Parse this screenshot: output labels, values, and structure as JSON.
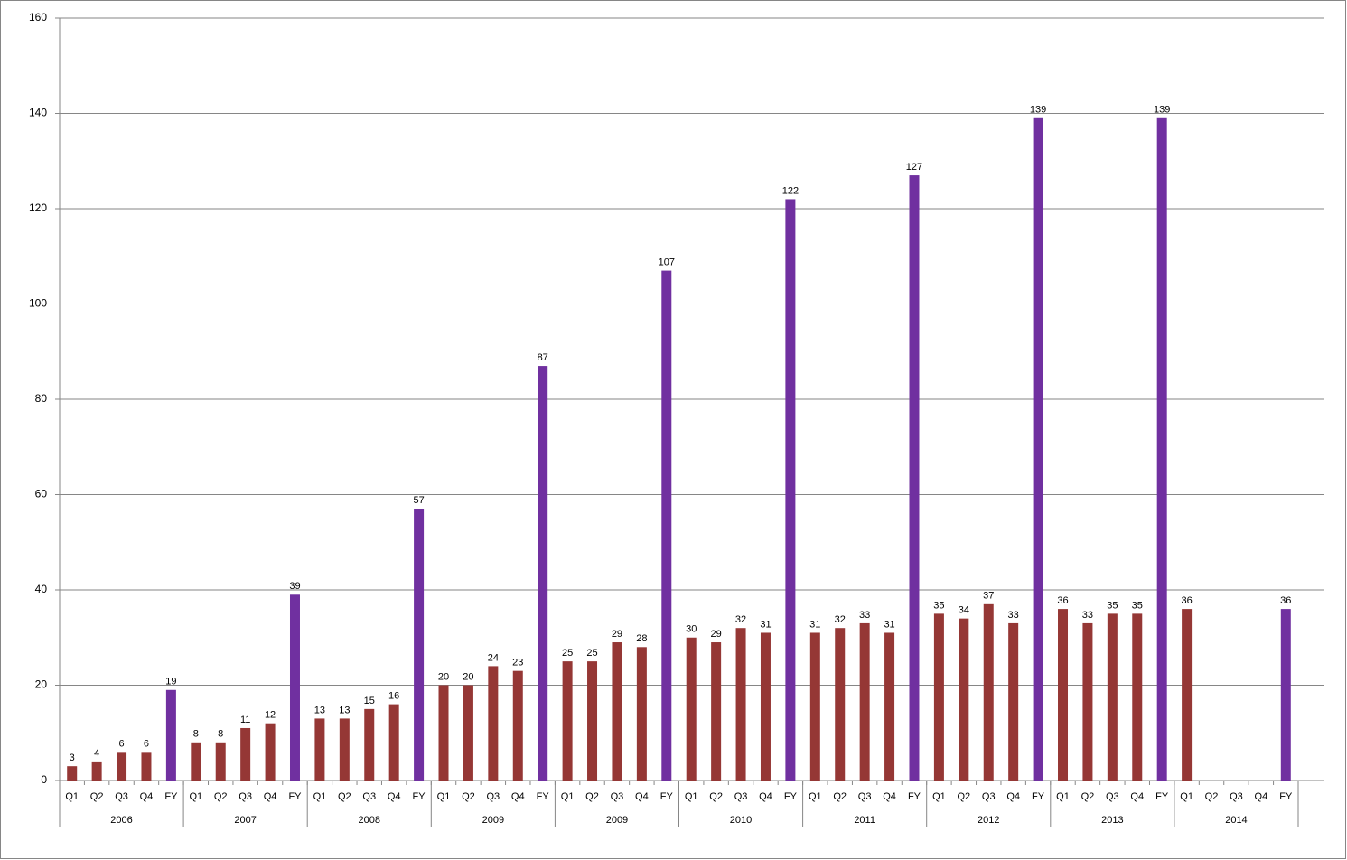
{
  "chart_data": {
    "type": "bar",
    "ylim": [
      0,
      160
    ],
    "yticks": [
      0,
      20,
      40,
      60,
      80,
      100,
      120,
      140,
      160
    ],
    "grid": true,
    "groups": [
      {
        "label": "2006",
        "categories": [
          "Q1",
          "Q2",
          "Q3",
          "Q4",
          "FY"
        ],
        "values": [
          3,
          4,
          6,
          6,
          19
        ],
        "colors": [
          "#953735",
          "#953735",
          "#953735",
          "#953735",
          "#7030a0"
        ]
      },
      {
        "label": "2007",
        "categories": [
          "Q1",
          "Q2",
          "Q3",
          "Q4",
          "FY"
        ],
        "values": [
          8,
          8,
          11,
          12,
          39
        ],
        "colors": [
          "#953735",
          "#953735",
          "#953735",
          "#953735",
          "#7030a0"
        ]
      },
      {
        "label": "2008",
        "categories": [
          "Q1",
          "Q2",
          "Q3",
          "Q4",
          "FY"
        ],
        "values": [
          13,
          13,
          15,
          16,
          57
        ],
        "colors": [
          "#953735",
          "#953735",
          "#953735",
          "#953735",
          "#7030a0"
        ]
      },
      {
        "label": "2009",
        "categories": [
          "Q1",
          "Q2",
          "Q3",
          "Q4",
          "FY"
        ],
        "values": [
          20,
          20,
          24,
          23,
          87
        ],
        "colors": [
          "#953735",
          "#953735",
          "#953735",
          "#953735",
          "#7030a0"
        ]
      },
      {
        "label": "2009",
        "categories": [
          "Q1",
          "Q2",
          "Q3",
          "Q4",
          "FY"
        ],
        "values": [
          25,
          25,
          29,
          28,
          107
        ],
        "colors": [
          "#953735",
          "#953735",
          "#953735",
          "#953735",
          "#7030a0"
        ]
      },
      {
        "label": "2010",
        "categories": [
          "Q1",
          "Q2",
          "Q3",
          "Q4",
          "FY"
        ],
        "values": [
          30,
          29,
          32,
          31,
          122
        ],
        "colors": [
          "#953735",
          "#953735",
          "#953735",
          "#953735",
          "#7030a0"
        ]
      },
      {
        "label": "2011",
        "categories": [
          "Q1",
          "Q2",
          "Q3",
          "Q4",
          "FY"
        ],
        "values": [
          31,
          32,
          33,
          31,
          127
        ],
        "colors": [
          "#953735",
          "#953735",
          "#953735",
          "#953735",
          "#7030a0"
        ]
      },
      {
        "label": "2012",
        "categories": [
          "Q1",
          "Q2",
          "Q3",
          "Q4",
          "FY"
        ],
        "values": [
          35,
          34,
          37,
          33,
          139
        ],
        "colors": [
          "#953735",
          "#953735",
          "#953735",
          "#953735",
          "#7030a0"
        ]
      },
      {
        "label": "2013",
        "categories": [
          "Q1",
          "Q2",
          "Q3",
          "Q4",
          "FY"
        ],
        "values": [
          36,
          33,
          35,
          35,
          139
        ],
        "colors": [
          "#953735",
          "#953735",
          "#953735",
          "#953735",
          "#7030a0"
        ]
      },
      {
        "label": "2014",
        "categories": [
          "Q1",
          "Q2",
          "Q3",
          "Q4",
          "FY"
        ],
        "values": [
          36,
          null,
          null,
          null,
          36
        ],
        "colors": [
          "#953735",
          "#953735",
          "#953735",
          "#953735",
          "#7030a0"
        ]
      }
    ]
  }
}
